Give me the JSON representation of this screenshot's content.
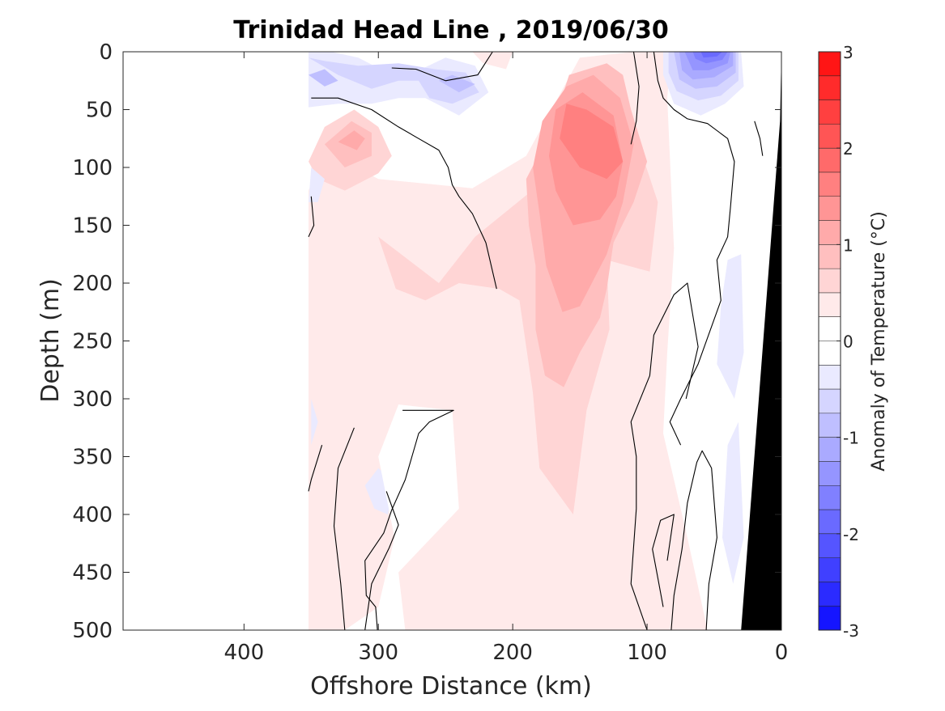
{
  "chart_data": {
    "type": "heatmap",
    "subtype": "filled-contour-section",
    "title": "Trinidad Head Line , 2019/06/30",
    "xlabel": "Offshore Distance (km)",
    "ylabel": "Depth (m)",
    "xlim": [
      490,
      0
    ],
    "ylim": [
      500,
      0
    ],
    "x_reversed": true,
    "y_reversed": true,
    "xticks": [
      400,
      300,
      200,
      100,
      0
    ],
    "yticks": [
      0,
      50,
      100,
      150,
      200,
      250,
      300,
      350,
      400,
      450,
      500
    ],
    "colorbar": {
      "label": "Anomaly of Temperature (°C)",
      "min": -3,
      "max": 3,
      "step": 0.25,
      "ticks": [
        -3,
        -2,
        -1,
        0,
        1,
        2,
        3
      ],
      "low_color": "#0000ff",
      "mid_color": "#ffffff",
      "high_color": "#ff0000"
    },
    "data_extent_km": 352,
    "zero_contour_color": "#000000",
    "bathymetry_color": "#000000",
    "bathymetry": [
      [
        0,
        0
      ],
      [
        1,
        60
      ],
      [
        30,
        500
      ],
      [
        0,
        500
      ]
    ],
    "regions": [
      {
        "level": 0.25,
        "poly": [
          [
            352,
            500
          ],
          [
            352,
            120
          ],
          [
            340,
            85
          ],
          [
            300,
            110
          ],
          [
            230,
            118
          ],
          [
            190,
            90
          ],
          [
            150,
            5
          ],
          [
            110,
            0
          ],
          [
            82,
            0
          ],
          [
            85,
            40
          ],
          [
            80,
            170
          ],
          [
            85,
            260
          ],
          [
            88,
            330
          ],
          [
            70,
            420
          ],
          [
            55,
            500
          ]
        ]
      },
      {
        "level": 0.5,
        "poly": [
          [
            300,
            160
          ],
          [
            255,
            200
          ],
          [
            228,
            160
          ],
          [
            175,
            110
          ],
          [
            160,
            70
          ],
          [
            130,
            45
          ],
          [
            112,
            60
          ],
          [
            92,
            130
          ],
          [
            98,
            190
          ],
          [
            130,
            180
          ],
          [
            128,
            240
          ],
          [
            145,
            310
          ],
          [
            155,
            400
          ],
          [
            180,
            360
          ],
          [
            185,
            295
          ],
          [
            195,
            215
          ],
          [
            210,
            205
          ],
          [
            240,
            200
          ],
          [
            265,
            215
          ],
          [
            287,
            205
          ]
        ]
      },
      {
        "level": 0.75,
        "poly": [
          [
            190,
            110
          ],
          [
            172,
            70
          ],
          [
            158,
            20
          ],
          [
            130,
            10
          ],
          [
            118,
            20
          ],
          [
            112,
            50
          ],
          [
            100,
            95
          ],
          [
            110,
            130
          ],
          [
            125,
            165
          ],
          [
            130,
            205
          ],
          [
            135,
            230
          ],
          [
            150,
            260
          ],
          [
            162,
            290
          ],
          [
            176,
            280
          ],
          [
            183,
            240
          ],
          [
            183,
            185
          ],
          [
            188,
            150
          ]
        ]
      },
      {
        "level": 1.0,
        "poly": [
          [
            178,
            60
          ],
          [
            160,
            30
          ],
          [
            140,
            20
          ],
          [
            120,
            40
          ],
          [
            110,
            80
          ],
          [
            118,
            130
          ],
          [
            130,
            175
          ],
          [
            150,
            220
          ],
          [
            163,
            225
          ],
          [
            175,
            185
          ],
          [
            180,
            140
          ],
          [
            185,
            100
          ]
        ]
      },
      {
        "level": 1.25,
        "poly": [
          [
            168,
            50
          ],
          [
            148,
            35
          ],
          [
            125,
            55
          ],
          [
            118,
            95
          ],
          [
            123,
            125
          ],
          [
            135,
            145
          ],
          [
            155,
            150
          ],
          [
            168,
            120
          ],
          [
            173,
            90
          ]
        ]
      },
      {
        "level": 1.5,
        "poly": [
          [
            160,
            45
          ],
          [
            145,
            50
          ],
          [
            125,
            65
          ],
          [
            118,
            95
          ],
          [
            130,
            110
          ],
          [
            150,
            100
          ],
          [
            165,
            75
          ]
        ]
      },
      {
        "level": 0.5,
        "poly": [
          [
            352,
            95
          ],
          [
            340,
            65
          ],
          [
            318,
            50
          ],
          [
            300,
            65
          ],
          [
            290,
            90
          ],
          [
            300,
            105
          ],
          [
            325,
            120
          ],
          [
            345,
            110
          ]
        ]
      },
      {
        "level": 0.75,
        "poly": [
          [
            340,
            80
          ],
          [
            320,
            60
          ],
          [
            305,
            70
          ],
          [
            305,
            90
          ],
          [
            325,
            100
          ]
        ]
      },
      {
        "level": 1.0,
        "poly": [
          [
            330,
            78
          ],
          [
            318,
            68
          ],
          [
            310,
            75
          ],
          [
            316,
            85
          ]
        ]
      },
      {
        "level": 0.25,
        "poly": [
          [
            230,
            0
          ],
          [
            200,
            0
          ],
          [
            205,
            15
          ],
          [
            222,
            10
          ]
        ]
      },
      {
        "level": -0.25,
        "poly": [
          [
            352,
            0
          ],
          [
            335,
            0
          ],
          [
            315,
            5
          ],
          [
            290,
            20
          ],
          [
            268,
            15
          ],
          [
            250,
            5
          ],
          [
            228,
            12
          ],
          [
            218,
            35
          ],
          [
            240,
            55
          ],
          [
            265,
            40
          ],
          [
            285,
            40
          ],
          [
            305,
            45
          ],
          [
            330,
            45
          ],
          [
            352,
            48
          ]
        ]
      },
      {
        "level": -0.5,
        "poly": [
          [
            352,
            5
          ],
          [
            330,
            20
          ],
          [
            305,
            32
          ],
          [
            285,
            25
          ],
          [
            270,
            25
          ],
          [
            262,
            40
          ],
          [
            245,
            45
          ],
          [
            225,
            35
          ],
          [
            235,
            18
          ],
          [
            258,
            15
          ],
          [
            285,
            10
          ],
          [
            315,
            12
          ],
          [
            340,
            8
          ]
        ]
      },
      {
        "level": -0.75,
        "poly": [
          [
            352,
            20
          ],
          [
            340,
            30
          ],
          [
            330,
            25
          ],
          [
            340,
            15
          ]
        ]
      },
      {
        "level": -0.75,
        "poly": [
          [
            255,
            25
          ],
          [
            240,
            35
          ],
          [
            228,
            28
          ],
          [
            245,
            20
          ]
        ]
      },
      {
        "level": -0.25,
        "poly": [
          [
            350,
            100
          ],
          [
            340,
            110
          ],
          [
            345,
            130
          ],
          [
            352,
            130
          ]
        ]
      },
      {
        "level": -0.25,
        "poly": [
          [
            88,
            0
          ],
          [
            30,
            0
          ],
          [
            28,
            30
          ],
          [
            42,
            45
          ],
          [
            60,
            55
          ],
          [
            80,
            45
          ],
          [
            88,
            20
          ]
        ]
      },
      {
        "level": -0.5,
        "poly": [
          [
            84,
            0
          ],
          [
            32,
            0
          ],
          [
            32,
            25
          ],
          [
            45,
            38
          ],
          [
            62,
            42
          ],
          [
            78,
            34
          ],
          [
            84,
            18
          ]
        ]
      },
      {
        "level": -0.75,
        "poly": [
          [
            80,
            0
          ],
          [
            34,
            0
          ],
          [
            34,
            18
          ],
          [
            48,
            30
          ],
          [
            64,
            32
          ],
          [
            76,
            24
          ]
        ]
      },
      {
        "level": -1.0,
        "poly": [
          [
            76,
            0
          ],
          [
            36,
            0
          ],
          [
            36,
            12
          ],
          [
            50,
            22
          ],
          [
            66,
            24
          ],
          [
            74,
            16
          ]
        ]
      },
      {
        "level": -1.25,
        "poly": [
          [
            72,
            0
          ],
          [
            38,
            0
          ],
          [
            40,
            10
          ],
          [
            54,
            16
          ],
          [
            66,
            16
          ]
        ]
      },
      {
        "level": -1.5,
        "poly": [
          [
            66,
            0
          ],
          [
            40,
            0
          ],
          [
            44,
            7
          ],
          [
            56,
            10
          ],
          [
            64,
            6
          ]
        ]
      },
      {
        "level": -1.75,
        "poly": [
          [
            60,
            0
          ],
          [
            44,
            0
          ],
          [
            48,
            4
          ],
          [
            58,
            5
          ]
        ]
      },
      {
        "level": -0.25,
        "poly": [
          [
            40,
            180
          ],
          [
            30,
            175
          ],
          [
            28,
            260
          ],
          [
            35,
            300
          ],
          [
            48,
            270
          ],
          [
            45,
            220
          ]
        ]
      },
      {
        "level": -0.25,
        "poly": [
          [
            40,
            340
          ],
          [
            32,
            320
          ],
          [
            28,
            420
          ],
          [
            36,
            460
          ],
          [
            44,
            420
          ]
        ]
      },
      {
        "level": -0.25,
        "poly": [
          [
            350,
            300
          ],
          [
            345,
            320
          ],
          [
            350,
            340
          ]
        ]
      },
      {
        "level": -0.25,
        "poly": [
          [
            290,
            370
          ],
          [
            300,
            360
          ],
          [
            310,
            375
          ],
          [
            303,
            395
          ],
          [
            293,
            400
          ],
          [
            290,
            385
          ]
        ]
      },
      {
        "level": 0,
        "poly": [
          [
            325,
            500
          ],
          [
            300,
            480
          ],
          [
            288,
            420
          ],
          [
            300,
            350
          ],
          [
            285,
            305
          ],
          [
            245,
            310
          ],
          [
            240,
            395
          ],
          [
            285,
            450
          ],
          [
            280,
            500
          ]
        ]
      }
    ],
    "contours": [
      [
        [
          350,
          40
        ],
        [
          330,
          40
        ],
        [
          305,
          50
        ],
        [
          285,
          65
        ],
        [
          270,
          75
        ],
        [
          255,
          85
        ],
        [
          248,
          100
        ],
        [
          245,
          115
        ],
        [
          240,
          125
        ],
        [
          230,
          140
        ],
        [
          220,
          165
        ],
        [
          212,
          205
        ]
      ],
      [
        [
          350,
          125
        ],
        [
          348,
          150
        ],
        [
          352,
          160
        ]
      ],
      [
        [
          215,
          0
        ],
        [
          226,
          20
        ],
        [
          250,
          25
        ],
        [
          272,
          15
        ],
        [
          290,
          14
        ]
      ],
      [
        [
          110,
          0
        ],
        [
          106,
          30
        ],
        [
          108,
          60
        ],
        [
          112,
          80
        ]
      ],
      [
        [
          95,
          0
        ],
        [
          92,
          25
        ],
        [
          88,
          40
        ],
        [
          80,
          50
        ],
        [
          70,
          58
        ],
        [
          55,
          62
        ],
        [
          40,
          75
        ],
        [
          35,
          95
        ],
        [
          38,
          135
        ],
        [
          40,
          160
        ],
        [
          48,
          180
        ],
        [
          45,
          215
        ],
        [
          62,
          270
        ],
        [
          75,
          300
        ],
        [
          83,
          320
        ],
        [
          75,
          340
        ]
      ],
      [
        [
          342,
          340
        ],
        [
          350,
          370
        ],
        [
          352,
          380
        ]
      ],
      [
        [
          300,
          510
        ],
        [
          302,
          480
        ],
        [
          309,
          470
        ],
        [
          310,
          440
        ],
        [
          296,
          416
        ],
        [
          290,
          396
        ],
        [
          280,
          370
        ],
        [
          270,
          330
        ],
        [
          262,
          320
        ],
        [
          244,
          310
        ],
        [
          282,
          310
        ]
      ],
      [
        [
          294,
          380
        ],
        [
          285,
          409
        ],
        [
          292,
          429
        ],
        [
          305,
          460
        ],
        [
          310,
          500
        ]
      ],
      [
        [
          325,
          500
        ],
        [
          328,
          460
        ],
        [
          333,
          410
        ],
        [
          330,
          360
        ],
        [
          318,
          325
        ]
      ],
      [
        [
          100,
          500
        ],
        [
          112,
          460
        ],
        [
          108,
          395
        ],
        [
          108,
          350
        ],
        [
          112,
          320
        ],
        [
          98,
          280
        ],
        [
          95,
          245
        ],
        [
          80,
          210
        ],
        [
          70,
          200
        ],
        [
          62,
          255
        ],
        [
          71,
          300
        ]
      ],
      [
        [
          82,
          500
        ],
        [
          80,
          470
        ],
        [
          74,
          430
        ],
        [
          70,
          390
        ],
        [
          63,
          355
        ],
        [
          59,
          345
        ],
        [
          52,
          360
        ],
        [
          48,
          420
        ],
        [
          54,
          460
        ],
        [
          56,
          500
        ]
      ],
      [
        [
          88,
          480
        ],
        [
          92,
          455
        ],
        [
          96,
          430
        ],
        [
          90,
          405
        ],
        [
          80,
          400
        ],
        [
          85,
          440
        ]
      ],
      [
        [
          20,
          60
        ],
        [
          16,
          75
        ],
        [
          14,
          90
        ]
      ]
    ]
  }
}
